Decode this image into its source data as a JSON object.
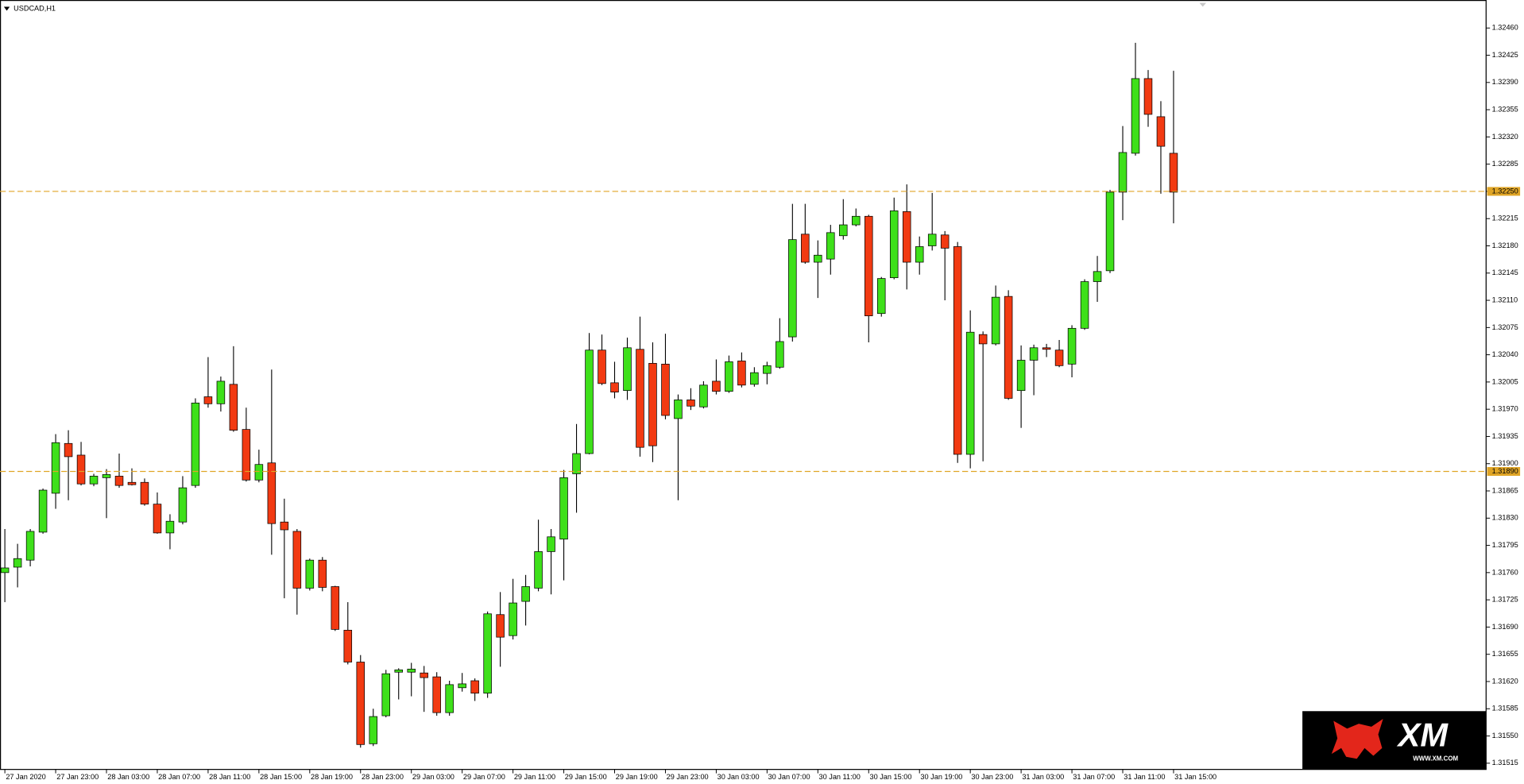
{
  "chart_data": {
    "type": "candlestick",
    "title": "USDCAD,H1",
    "categories": [
      "27 Jan 2020",
      null,
      null,
      null,
      "27 Jan 23:00",
      null,
      null,
      null,
      "28 Jan 03:00",
      null,
      null,
      null,
      "28 Jan 07:00",
      null,
      null,
      null,
      "28 Jan 11:00",
      null,
      null,
      null,
      "28 Jan 15:00",
      null,
      null,
      null,
      "28 Jan 19:00",
      null,
      null,
      null,
      "28 Jan 23:00",
      null,
      null,
      null,
      "29 Jan 03:00",
      null,
      null,
      null,
      "29 Jan 07:00",
      null,
      null,
      null,
      "29 Jan 11:00",
      null,
      null,
      null,
      "29 Jan 15:00",
      null,
      null,
      null,
      "29 Jan 19:00",
      null,
      null,
      null,
      "29 Jan 23:00",
      null,
      null,
      null,
      "30 Jan 03:00",
      null,
      null,
      null,
      "30 Jan 07:00",
      null,
      null,
      null,
      "30 Jan 11:00",
      null,
      null,
      null,
      "30 Jan 15:00",
      null,
      null,
      null,
      "30 Jan 19:00",
      null,
      null,
      null,
      "30 Jan 23:00",
      null,
      null,
      null,
      "31 Jan 03:00",
      null,
      null,
      null,
      "31 Jan 07:00",
      null,
      null,
      null,
      "31 Jan 11:00",
      null,
      null,
      null,
      "31 Jan 15:00"
    ],
    "open": [
      1.3176,
      1.31767,
      1.31776,
      1.31812,
      1.31862,
      1.31926,
      1.31911,
      1.31874,
      1.31882,
      1.31884,
      1.31876,
      1.31876,
      1.31848,
      1.31811,
      1.31825,
      1.31872,
      1.31986,
      1.31977,
      1.32002,
      1.31944,
      1.31879,
      1.31901,
      1.31825,
      1.31813,
      1.3174,
      1.31776,
      1.31742,
      1.31686,
      1.31645,
      1.3154,
      1.31576,
      1.31632,
      1.31632,
      1.31631,
      1.31626,
      1.3158,
      1.31612,
      1.31621,
      1.31605,
      1.31706,
      1.31679,
      1.31723,
      1.3174,
      1.31787,
      1.31803,
      1.31887,
      1.31913,
      1.32046,
      1.32004,
      1.31994,
      1.32047,
      1.32029,
      1.32028,
      1.31958,
      1.31982,
      1.31973,
      1.32006,
      1.31993,
      1.32032,
      1.32002,
      1.32016,
      1.32024,
      1.32063,
      1.32195,
      1.32159,
      1.32163,
      1.32193,
      1.32207,
      1.32218,
      1.32093,
      1.32139,
      1.32224,
      1.32159,
      1.3218,
      1.32194,
      1.32179,
      1.31912,
      1.32066,
      1.32054,
      1.32115,
      1.31994,
      1.32033,
      1.32049,
      1.32046,
      1.32028,
      1.32074,
      1.32134,
      1.32148,
      1.32249,
      1.32299,
      1.32395,
      1.32346,
      1.32299
    ],
    "high": [
      1.31816,
      1.31797,
      1.31816,
      1.31868,
      1.31938,
      1.31943,
      1.31928,
      1.31887,
      1.31893,
      1.31913,
      1.31894,
      1.31881,
      1.31863,
      1.31835,
      1.31884,
      1.31984,
      1.32037,
      1.32012,
      1.32051,
      1.31972,
      1.31918,
      1.32021,
      1.31855,
      1.31816,
      1.31778,
      1.3178,
      1.31743,
      1.31722,
      1.31654,
      1.31585,
      1.31635,
      1.31637,
      1.31644,
      1.3164,
      1.31632,
      1.31621,
      1.31631,
      1.31624,
      1.3171,
      1.31735,
      1.31752,
      1.31757,
      1.31828,
      1.31816,
      1.31892,
      1.31951,
      1.32068,
      1.32066,
      1.32031,
      1.32062,
      1.32089,
      1.32056,
      1.32067,
      1.31989,
      1.31997,
      1.32006,
      1.32034,
      1.32039,
      1.32043,
      1.32024,
      1.32031,
      1.32087,
      1.32234,
      1.32234,
      1.32187,
      1.32207,
      1.3224,
      1.32228,
      1.3222,
      1.3214,
      1.32242,
      1.32259,
      1.32192,
      1.32248,
      1.32199,
      1.32185,
      1.32097,
      1.3207,
      1.32129,
      1.32123,
      1.32052,
      1.32053,
      1.32054,
      1.32059,
      1.32078,
      1.32137,
      1.32167,
      1.32252,
      1.32334,
      1.32441,
      1.32406,
      1.32366,
      1.32405
    ],
    "low": [
      1.31722,
      1.31741,
      1.31768,
      1.3181,
      1.31842,
      1.31853,
      1.31872,
      1.31871,
      1.3183,
      1.31869,
      1.31872,
      1.31846,
      1.3181,
      1.3179,
      1.31822,
      1.31869,
      1.31972,
      1.31967,
      1.31941,
      1.31877,
      1.31876,
      1.31783,
      1.31727,
      1.31706,
      1.31737,
      1.31736,
      1.31685,
      1.31642,
      1.31535,
      1.31537,
      1.31574,
      1.31597,
      1.31601,
      1.31581,
      1.31576,
      1.31576,
      1.31607,
      1.31595,
      1.31599,
      1.31639,
      1.31674,
      1.31692,
      1.31736,
      1.31732,
      1.3175,
      1.31837,
      1.31912,
      1.32001,
      1.31984,
      1.31982,
      1.31909,
      1.31902,
      1.31957,
      1.31853,
      1.31969,
      1.31971,
      1.31989,
      1.31991,
      1.31998,
      1.31999,
      1.32002,
      1.32022,
      1.32057,
      1.32157,
      1.32113,
      1.32143,
      1.32188,
      1.32205,
      1.32056,
      1.32089,
      1.32137,
      1.32124,
      1.32143,
      1.32174,
      1.3211,
      1.31901,
      1.31894,
      1.31903,
      1.32052,
      1.31982,
      1.31946,
      1.31988,
      1.32037,
      1.32024,
      1.32011,
      1.32072,
      1.32108,
      1.32145,
      1.32213,
      1.32296,
      1.32333,
      1.32247,
      1.32209
    ],
    "close": [
      1.31766,
      1.31778,
      1.31813,
      1.31866,
      1.31927,
      1.31909,
      1.31874,
      1.31884,
      1.31886,
      1.31872,
      1.31873,
      1.31848,
      1.31811,
      1.31826,
      1.31869,
      1.31978,
      1.31977,
      1.32006,
      1.31943,
      1.31879,
      1.31899,
      1.31823,
      1.31815,
      1.3174,
      1.31776,
      1.31741,
      1.31687,
      1.31645,
      1.31539,
      1.31575,
      1.3163,
      1.31635,
      1.31636,
      1.31625,
      1.3158,
      1.31616,
      1.31617,
      1.31605,
      1.31707,
      1.31677,
      1.31721,
      1.31742,
      1.31787,
      1.31806,
      1.31882,
      1.31913,
      1.32046,
      1.32003,
      1.31992,
      1.32049,
      1.31921,
      1.31923,
      1.31962,
      1.31982,
      1.31974,
      1.32001,
      1.31993,
      1.32031,
      1.32001,
      1.32017,
      1.32026,
      1.32057,
      1.32188,
      1.32159,
      1.32168,
      1.32197,
      1.32207,
      1.32218,
      1.3209,
      1.32138,
      1.32225,
      1.32159,
      1.32179,
      1.32195,
      1.32177,
      1.31912,
      1.32069,
      1.32054,
      1.32114,
      1.31984,
      1.32033,
      1.32049,
      1.32047,
      1.32026,
      1.32074,
      1.32134,
      1.32147,
      1.32249,
      1.323,
      1.32395,
      1.32349,
      1.32308,
      1.32249
    ],
    "up_color": "#3ee01a",
    "down_color": "#f23a12",
    "ylim": [
      1.31507,
      1.32491
    ],
    "yticks": [
      {
        "value": 1.3246,
        "label": "1.32460"
      },
      {
        "value": 1.32425,
        "label": "1.32425"
      },
      {
        "value": 1.3239,
        "label": "1.32390"
      },
      {
        "value": 1.32355,
        "label": "1.32355"
      },
      {
        "value": 1.3232,
        "label": "1.32320"
      },
      {
        "value": 1.32285,
        "label": "1.32285"
      },
      {
        "value": 1.3225,
        "label": "1.32250"
      },
      {
        "value": 1.32215,
        "label": "1.32215"
      },
      {
        "value": 1.3218,
        "label": "1.32180"
      },
      {
        "value": 1.32145,
        "label": "1.32145"
      },
      {
        "value": 1.3211,
        "label": "1.32110"
      },
      {
        "value": 1.32075,
        "label": "1.32075"
      },
      {
        "value": 1.3204,
        "label": "1.32040"
      },
      {
        "value": 1.32005,
        "label": "1.32005"
      },
      {
        "value": 1.3197,
        "label": "1.31970"
      },
      {
        "value": 1.31935,
        "label": "1.31935"
      },
      {
        "value": 1.319,
        "label": "1.31900"
      },
      {
        "value": 1.31865,
        "label": "1.31865"
      },
      {
        "value": 1.3183,
        "label": "1.31830"
      },
      {
        "value": 1.31795,
        "label": "1.31795"
      },
      {
        "value": 1.3176,
        "label": "1.31760"
      },
      {
        "value": 1.31725,
        "label": "1.31725"
      },
      {
        "value": 1.3169,
        "label": "1.31690"
      },
      {
        "value": 1.31655,
        "label": "1.31655"
      },
      {
        "value": 1.3162,
        "label": "1.31620"
      },
      {
        "value": 1.31585,
        "label": "1.31585"
      },
      {
        "value": 1.3155,
        "label": "1.31550"
      },
      {
        "value": 1.31515,
        "label": "1.31515"
      }
    ],
    "levels": [
      {
        "value": 1.3225,
        "label": "1.32250"
      },
      {
        "value": 1.3189,
        "label": "1.31890"
      }
    ],
    "level_color": "#e0a526",
    "grid": false,
    "logo": {
      "text": "XM",
      "url": "WWW.XM.COM"
    }
  }
}
